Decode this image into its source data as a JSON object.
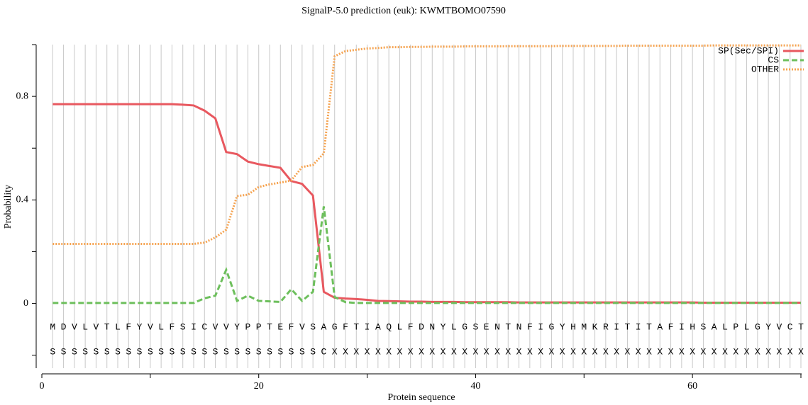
{
  "chart_data": {
    "type": "line",
    "title": "SignalP-5.0 prediction (euk):  KWMTBOMO07590",
    "xlabel": "Protein sequence",
    "ylabel": "Probability",
    "x": [
      1,
      2,
      3,
      4,
      5,
      6,
      7,
      8,
      9,
      10,
      11,
      12,
      13,
      14,
      15,
      16,
      17,
      18,
      19,
      20,
      21,
      22,
      23,
      24,
      25,
      26,
      27,
      28,
      29,
      30,
      31,
      32,
      33,
      34,
      35,
      36,
      37,
      38,
      39,
      40,
      41,
      42,
      43,
      44,
      45,
      46,
      47,
      48,
      49,
      50,
      51,
      52,
      53,
      54,
      55,
      56,
      57,
      58,
      59,
      60,
      61,
      62,
      63,
      64,
      65,
      66,
      67,
      68,
      69,
      70
    ],
    "sequence": [
      "M",
      "D",
      "V",
      "L",
      "V",
      "T",
      "L",
      "F",
      "Y",
      "V",
      "L",
      "F",
      "S",
      "I",
      "C",
      "V",
      "V",
      "Y",
      "P",
      "P",
      "T",
      "E",
      "F",
      "V",
      "S",
      "A",
      "G",
      "F",
      "T",
      "I",
      "A",
      "Q",
      "L",
      "F",
      "D",
      "N",
      "Y",
      "L",
      "G",
      "S",
      "E",
      "N",
      "T",
      "N",
      "F",
      "I",
      "G",
      "Y",
      "H",
      "M",
      "K",
      "R",
      "I",
      "T",
      "I",
      "T",
      "A",
      "F",
      "I",
      "H",
      "S",
      "A",
      "L",
      "P",
      "L",
      "G",
      "Y",
      "V",
      "C",
      "T"
    ],
    "labels": [
      "S",
      "S",
      "S",
      "S",
      "S",
      "S",
      "S",
      "S",
      "S",
      "S",
      "S",
      "S",
      "S",
      "S",
      "S",
      "S",
      "S",
      "S",
      "S",
      "S",
      "S",
      "S",
      "S",
      "S",
      "S",
      "C",
      "X",
      "X",
      "X",
      "X",
      "X",
      "X",
      "X",
      "X",
      "X",
      "X",
      "X",
      "X",
      "X",
      "X",
      "X",
      "X",
      "X",
      "X",
      "X",
      "X",
      "X",
      "X",
      "X",
      "X",
      "X",
      "X",
      "X",
      "X",
      "X",
      "X",
      "X",
      "X",
      "X",
      "X",
      "X",
      "X",
      "X",
      "X",
      "X",
      "X",
      "X",
      "X",
      "X",
      "X"
    ],
    "series": [
      {
        "name": "SP(Sec/SPI)",
        "color": "#e8585f",
        "style": "solid",
        "values": [
          0.77,
          0.77,
          0.77,
          0.77,
          0.77,
          0.77,
          0.77,
          0.77,
          0.77,
          0.77,
          0.77,
          0.77,
          0.768,
          0.765,
          0.745,
          0.715,
          0.585,
          0.577,
          0.548,
          0.538,
          0.531,
          0.524,
          0.473,
          0.462,
          0.417,
          0.045,
          0.022,
          0.019,
          0.017,
          0.014,
          0.01,
          0.009,
          0.008,
          0.007,
          0.007,
          0.006,
          0.006,
          0.006,
          0.005,
          0.005,
          0.005,
          0.005,
          0.005,
          0.004,
          0.004,
          0.004,
          0.004,
          0.004,
          0.004,
          0.004,
          0.004,
          0.004,
          0.004,
          0.004,
          0.004,
          0.004,
          0.004,
          0.004,
          0.004,
          0.004,
          0.003,
          0.003,
          0.003,
          0.003,
          0.003,
          0.003,
          0.003,
          0.003,
          0.003,
          0.003
        ]
      },
      {
        "name": "CS",
        "color": "#6dbf5c",
        "style": "dashed",
        "values": [
          0.002,
          0.002,
          0.002,
          0.002,
          0.002,
          0.002,
          0.002,
          0.002,
          0.002,
          0.002,
          0.002,
          0.002,
          0.002,
          0.002,
          0.02,
          0.03,
          0.13,
          0.01,
          0.03,
          0.01,
          0.008,
          0.006,
          0.055,
          0.01,
          0.045,
          0.375,
          0.025,
          0.005,
          0.002,
          0.002,
          0.002,
          0.002,
          0.002,
          0.002,
          0.002,
          0.002,
          0.002,
          0.002,
          0.002,
          0.002,
          0.002,
          0.002,
          0.002,
          0.002,
          0.002,
          0.002,
          0.002,
          0.002,
          0.002,
          0.002,
          0.002,
          0.002,
          0.002,
          0.002,
          0.002,
          0.002,
          0.002,
          0.002,
          0.002,
          0.002,
          0.002,
          0.002,
          0.002,
          0.002,
          0.002,
          0.002,
          0.002,
          0.002,
          0.002,
          0.002
        ]
      },
      {
        "name": "OTHER",
        "color": "#f5a452",
        "style": "dotted",
        "values": [
          0.23,
          0.23,
          0.23,
          0.23,
          0.23,
          0.23,
          0.23,
          0.23,
          0.23,
          0.23,
          0.23,
          0.23,
          0.23,
          0.23,
          0.235,
          0.255,
          0.285,
          0.415,
          0.42,
          0.45,
          0.46,
          0.467,
          0.475,
          0.527,
          0.535,
          0.58,
          0.955,
          0.975,
          0.98,
          0.985,
          0.987,
          0.99,
          0.99,
          0.991,
          0.991,
          0.992,
          0.992,
          0.992,
          0.993,
          0.993,
          0.993,
          0.993,
          0.994,
          0.994,
          0.994,
          0.994,
          0.994,
          0.995,
          0.995,
          0.995,
          0.995,
          0.995,
          0.995,
          0.996,
          0.996,
          0.996,
          0.996,
          0.996,
          0.996,
          0.996,
          0.996,
          0.997,
          0.997,
          0.997,
          0.997,
          0.997,
          0.997,
          0.997,
          0.997,
          0.997
        ]
      }
    ],
    "xlim": [
      0,
      70
    ],
    "xticks": [
      0,
      20,
      40,
      60
    ],
    "xminorticks": [
      10,
      30,
      50,
      70
    ],
    "ylim": [
      -0.25,
      1.0
    ],
    "yticks": [
      0,
      0.4,
      0.8
    ],
    "yminorticks": [
      -0.2,
      0.2,
      0.6,
      1.0
    ],
    "grid": true,
    "legend": "upper right"
  }
}
